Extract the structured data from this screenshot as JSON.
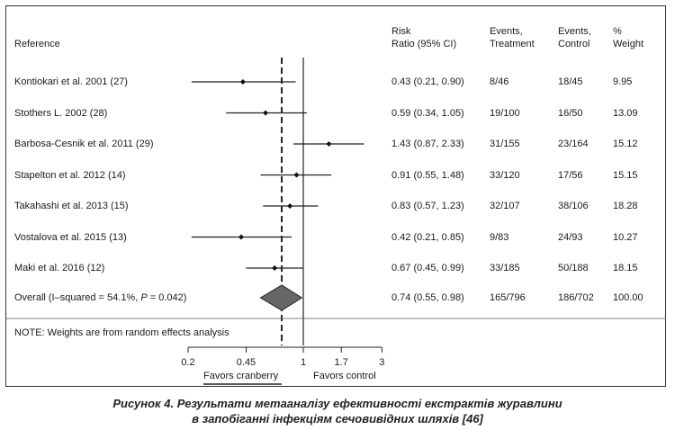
{
  "header": {
    "reference": "Reference",
    "risk_ratio": "Risk\nRatio (95% CI)",
    "events_treatment": "Events,\nTreatment",
    "events_control": "Events,\nControl",
    "weight": "%\nWeight"
  },
  "note": "NOTE: Weights are from random effects analysis",
  "axis": {
    "scale": "log",
    "ticks": [
      0.2,
      0.45,
      1,
      1.7,
      3
    ],
    "tick_labels": [
      "0.2",
      "0.45",
      "1",
      "1.7",
      "3"
    ],
    "favors_left": "Favors cranberry",
    "favors_right": "Favors control"
  },
  "caption": {
    "line1": "Рисунок 4. Результати метааналізу ефективності екстрактів журавлини",
    "line2": "в запобіганні інфекціям сечовивідних шляхів [46]"
  },
  "chart_data": {
    "type": "forest",
    "xscale": "log",
    "xlim": [
      0.2,
      3
    ],
    "reference_line": 1,
    "overall_line": 0.74,
    "studies": [
      {
        "label": "Kontiokari et al. 2001 (27)",
        "rr": 0.43,
        "lo": 0.21,
        "hi": 0.9,
        "ci_text": "0.43 (0.21, 0.90)",
        "treatment": "8/46",
        "control": "18/45",
        "weight": "9.95"
      },
      {
        "label": "Stothers L. 2002 (28)",
        "rr": 0.59,
        "lo": 0.34,
        "hi": 1.05,
        "ci_text": "0.59 (0.34, 1.05)",
        "treatment": "19/100",
        "control": "16/50",
        "weight": "13.09"
      },
      {
        "label": "Barbosa-Cesnik et al. 2011 (29)",
        "rr": 1.43,
        "lo": 0.87,
        "hi": 2.33,
        "ci_text": "1.43 (0.87, 2.33)",
        "treatment": "31/155",
        "control": "23/164",
        "weight": "15.12"
      },
      {
        "label": "Stapelton et al. 2012 (14)",
        "rr": 0.91,
        "lo": 0.55,
        "hi": 1.48,
        "ci_text": "0.91 (0.55, 1.48)",
        "treatment": "33/120",
        "control": "17/56",
        "weight": "15.15"
      },
      {
        "label": "Takahashi et al. 2013 (15)",
        "rr": 0.83,
        "lo": 0.57,
        "hi": 1.23,
        "ci_text": "0.83 (0.57, 1.23)",
        "treatment": "32/107",
        "control": "38/106",
        "weight": "18.28"
      },
      {
        "label": "Vostalova et al. 2015 (13)",
        "rr": 0.42,
        "lo": 0.21,
        "hi": 0.85,
        "ci_text": "0.42 (0.21, 0.85)",
        "treatment": "9/83",
        "control": "24/93",
        "weight": "10.27"
      },
      {
        "label": "Maki et al. 2016 (12)",
        "rr": 0.67,
        "lo": 0.45,
        "hi": 0.99,
        "ci_text": "0.67 (0.45, 0.99)",
        "treatment": "33/185",
        "control": "50/188",
        "weight": "18.15"
      }
    ],
    "overall": {
      "label_pre": "Overall  (I–squared = 54.1%, ",
      "label_p": "P",
      "label_post": " = 0.042)",
      "rr": 0.74,
      "lo": 0.55,
      "hi": 0.98,
      "ci_text": "0.74 (0.55, 0.98)",
      "treatment": "165/796",
      "control": "186/702",
      "weight": "100.00"
    }
  }
}
